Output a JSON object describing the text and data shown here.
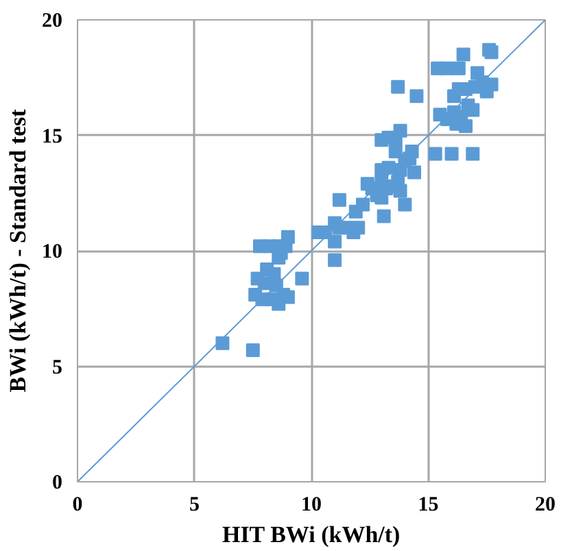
{
  "chart_data": {
    "type": "scatter",
    "xlabel": "HIT BWi (kWh/t)",
    "ylabel": "BWi (kWh/t) - Standard test",
    "xlim": [
      0,
      20
    ],
    "ylim": [
      0,
      20
    ],
    "xticks": [
      0,
      5,
      10,
      15,
      20
    ],
    "yticks": [
      0,
      5,
      10,
      15,
      20
    ],
    "grid": true,
    "series": [
      {
        "color": "#5b9bd5",
        "marker": "square",
        "x": [
          6.2,
          7.5,
          7.8,
          8.2,
          8.6,
          9.0,
          8.9,
          7.6,
          7.7,
          8.0,
          8.1,
          8.4,
          8.5,
          8.6,
          8.7,
          7.9,
          8.3,
          8.6,
          8.8,
          9.0,
          9.6,
          10.3,
          10.6,
          11.0,
          11.0,
          11.2,
          11.0,
          11.5,
          11.8,
          12.0,
          11.9,
          11.2,
          12.2,
          12.4,
          12.6,
          12.8,
          13.0,
          13.0,
          13.1,
          13.2,
          13.4,
          13.3,
          13.0,
          13.7,
          13.8,
          13.6,
          13.8,
          13.0,
          13.3,
          13.6,
          14.0,
          14.2,
          14.0,
          14.3,
          14.5,
          13.7,
          14.4,
          13.8,
          15.3,
          16.0,
          16.9,
          15.4,
          15.8,
          16.3,
          16.5,
          17.6,
          17.7,
          15.5,
          15.8,
          16.1,
          16.3,
          16.6,
          16.7,
          16.9,
          17.0,
          17.1,
          17.3,
          17.7,
          17.5,
          16.1,
          16.4,
          16.6,
          16.2
        ],
        "values": [
          6.0,
          5.7,
          10.2,
          10.2,
          10.2,
          10.6,
          10.2,
          8.1,
          8.8,
          8.6,
          9.2,
          9.0,
          8.5,
          9.7,
          9.9,
          7.9,
          7.9,
          7.7,
          8.1,
          8.0,
          8.8,
          10.8,
          10.8,
          10.4,
          9.6,
          11.0,
          11.2,
          11.0,
          10.8,
          11.0,
          11.7,
          12.2,
          12.0,
          12.9,
          12.7,
          12.4,
          13.0,
          12.3,
          11.5,
          12.7,
          12.8,
          13.6,
          13.5,
          13.0,
          13.5,
          14.3,
          15.2,
          14.8,
          14.9,
          14.8,
          13.9,
          14.0,
          12.0,
          14.3,
          16.7,
          17.1,
          13.4,
          12.6,
          14.2,
          14.2,
          14.2,
          17.9,
          17.9,
          17.9,
          18.5,
          18.7,
          18.6,
          15.9,
          15.7,
          16.7,
          17.0,
          17.0,
          16.3,
          16.1,
          17.1,
          17.7,
          17.3,
          17.2,
          16.9,
          16.0,
          15.8,
          15.4,
          15.5
        ]
      },
      {
        "type": "line",
        "color": "#5b9bd5",
        "marker": "none",
        "x": [
          0,
          20
        ],
        "values": [
          0,
          20
        ]
      }
    ]
  }
}
